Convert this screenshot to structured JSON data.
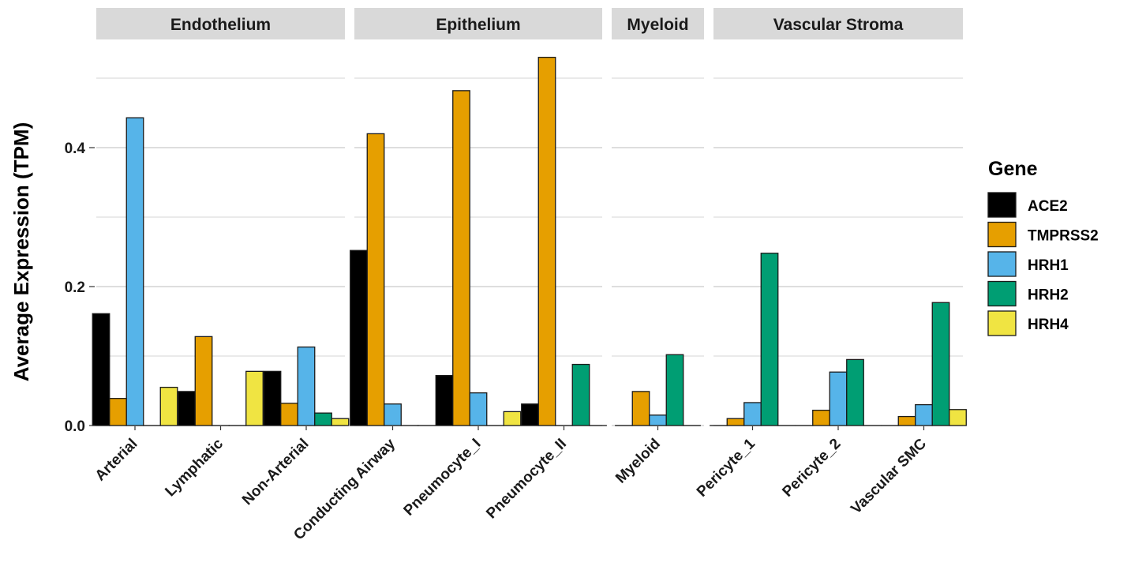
{
  "chart_data": {
    "type": "bar",
    "ylabel": "Average Expression (TPM)",
    "ylim": [
      0,
      0.53
    ],
    "y_ticks": [
      0.0,
      0.2,
      0.4
    ],
    "y_tick_labels": [
      "0.0",
      "0.2",
      "0.4"
    ],
    "grid": true,
    "legend_title": "Gene",
    "legend_position": "right",
    "series": [
      {
        "name": "ACE2",
        "color": "#000000"
      },
      {
        "name": "TMPRSS2",
        "color": "#E69F00"
      },
      {
        "name": "HRH1",
        "color": "#56B4E9"
      },
      {
        "name": "HRH2",
        "color": "#009E73"
      },
      {
        "name": "HRH4",
        "color": "#F0E442"
      }
    ],
    "facets": [
      {
        "name": "Endothelium",
        "categories": [
          {
            "label": "Arterial",
            "values": [
              0.161,
              0.039,
              0.443,
              0.0,
              0.055
            ]
          },
          {
            "label": "Lymphatic",
            "values": [
              0.049,
              0.128,
              0.0,
              0.0,
              0.078
            ]
          },
          {
            "label": "Non-Arterial",
            "values": [
              0.078,
              0.032,
              0.113,
              0.018,
              0.01
            ]
          }
        ]
      },
      {
        "name": "Epithelium",
        "categories": [
          {
            "label": "Conducting Airway",
            "values": [
              0.252,
              0.42,
              0.031,
              0.0,
              0.0
            ]
          },
          {
            "label": "Pneumocyte_I",
            "values": [
              0.072,
              0.482,
              0.047,
              0.0,
              0.02
            ]
          },
          {
            "label": "Pneumocyte_II",
            "values": [
              0.031,
              0.53,
              0.0,
              0.088,
              0.0
            ]
          }
        ]
      },
      {
        "name": "Myeloid",
        "categories": [
          {
            "label": "Myeloid",
            "values": [
              0.0,
              0.049,
              0.015,
              0.102,
              0.0
            ]
          }
        ]
      },
      {
        "name": "Vascular Stroma",
        "categories": [
          {
            "label": "Pericyte_1",
            "values": [
              0.0,
              0.01,
              0.033,
              0.248,
              0.0
            ]
          },
          {
            "label": "Pericyte_2",
            "values": [
              0.0,
              0.022,
              0.077,
              0.095,
              0.0
            ]
          },
          {
            "label": "Vascular SMC",
            "values": [
              0.0,
              0.013,
              0.03,
              0.177,
              0.023
            ]
          }
        ]
      }
    ]
  }
}
